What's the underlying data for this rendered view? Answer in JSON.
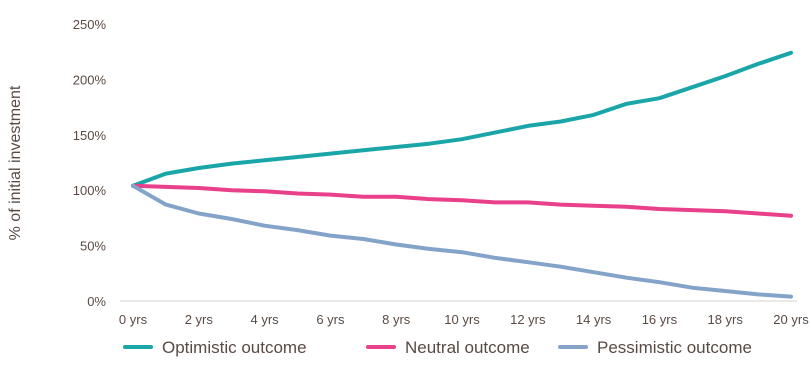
{
  "chart_data": {
    "type": "line",
    "title": "",
    "xlabel": "",
    "ylabel": "% of initial investment",
    "x": [
      0,
      1,
      2,
      3,
      4,
      5,
      6,
      7,
      8,
      9,
      10,
      11,
      12,
      13,
      14,
      15,
      16,
      17,
      18,
      19,
      20
    ],
    "xticks": [
      {
        "value": 0,
        "label": "0 yrs"
      },
      {
        "value": 2,
        "label": "2 yrs"
      },
      {
        "value": 4,
        "label": "4 yrs"
      },
      {
        "value": 6,
        "label": "6 yrs"
      },
      {
        "value": 8,
        "label": "8 yrs"
      },
      {
        "value": 10,
        "label": "10 yrs"
      },
      {
        "value": 12,
        "label": "12 yrs"
      },
      {
        "value": 14,
        "label": "14 yrs"
      },
      {
        "value": 16,
        "label": "16 yrs"
      },
      {
        "value": 18,
        "label": "18 yrs"
      },
      {
        "value": 20,
        "label": "20 yrs"
      }
    ],
    "yticks": [
      {
        "value": 0,
        "label": "0%"
      },
      {
        "value": 50,
        "label": "50%"
      },
      {
        "value": 100,
        "label": "100%"
      },
      {
        "value": 150,
        "label": "150%"
      },
      {
        "value": 200,
        "label": "200%"
      },
      {
        "value": 250,
        "label": "250%"
      }
    ],
    "xlim": [
      0,
      20
    ],
    "ylim": [
      0,
      250
    ],
    "grid": false,
    "legend_position": "bottom",
    "series": [
      {
        "name": "Optimistic outcome",
        "color": "#1aa6a8",
        "values": [
          104,
          115,
          120,
          124,
          127,
          130,
          133,
          136,
          139,
          142,
          146,
          152,
          158,
          162,
          168,
          178,
          183,
          193,
          203,
          214,
          224
        ]
      },
      {
        "name": "Neutral outcome",
        "color": "#e8408a",
        "values": [
          104,
          103,
          102,
          100,
          99,
          97,
          96,
          94,
          94,
          92,
          91,
          89,
          89,
          87,
          86,
          85,
          83,
          82,
          81,
          79,
          77
        ]
      },
      {
        "name": "Pessimistic outcome",
        "color": "#84a3c9",
        "values": [
          104,
          87,
          79,
          74,
          68,
          64,
          59,
          56,
          51,
          47,
          44,
          39,
          35,
          31,
          26,
          21,
          17,
          12,
          9,
          6,
          4
        ]
      }
    ]
  }
}
